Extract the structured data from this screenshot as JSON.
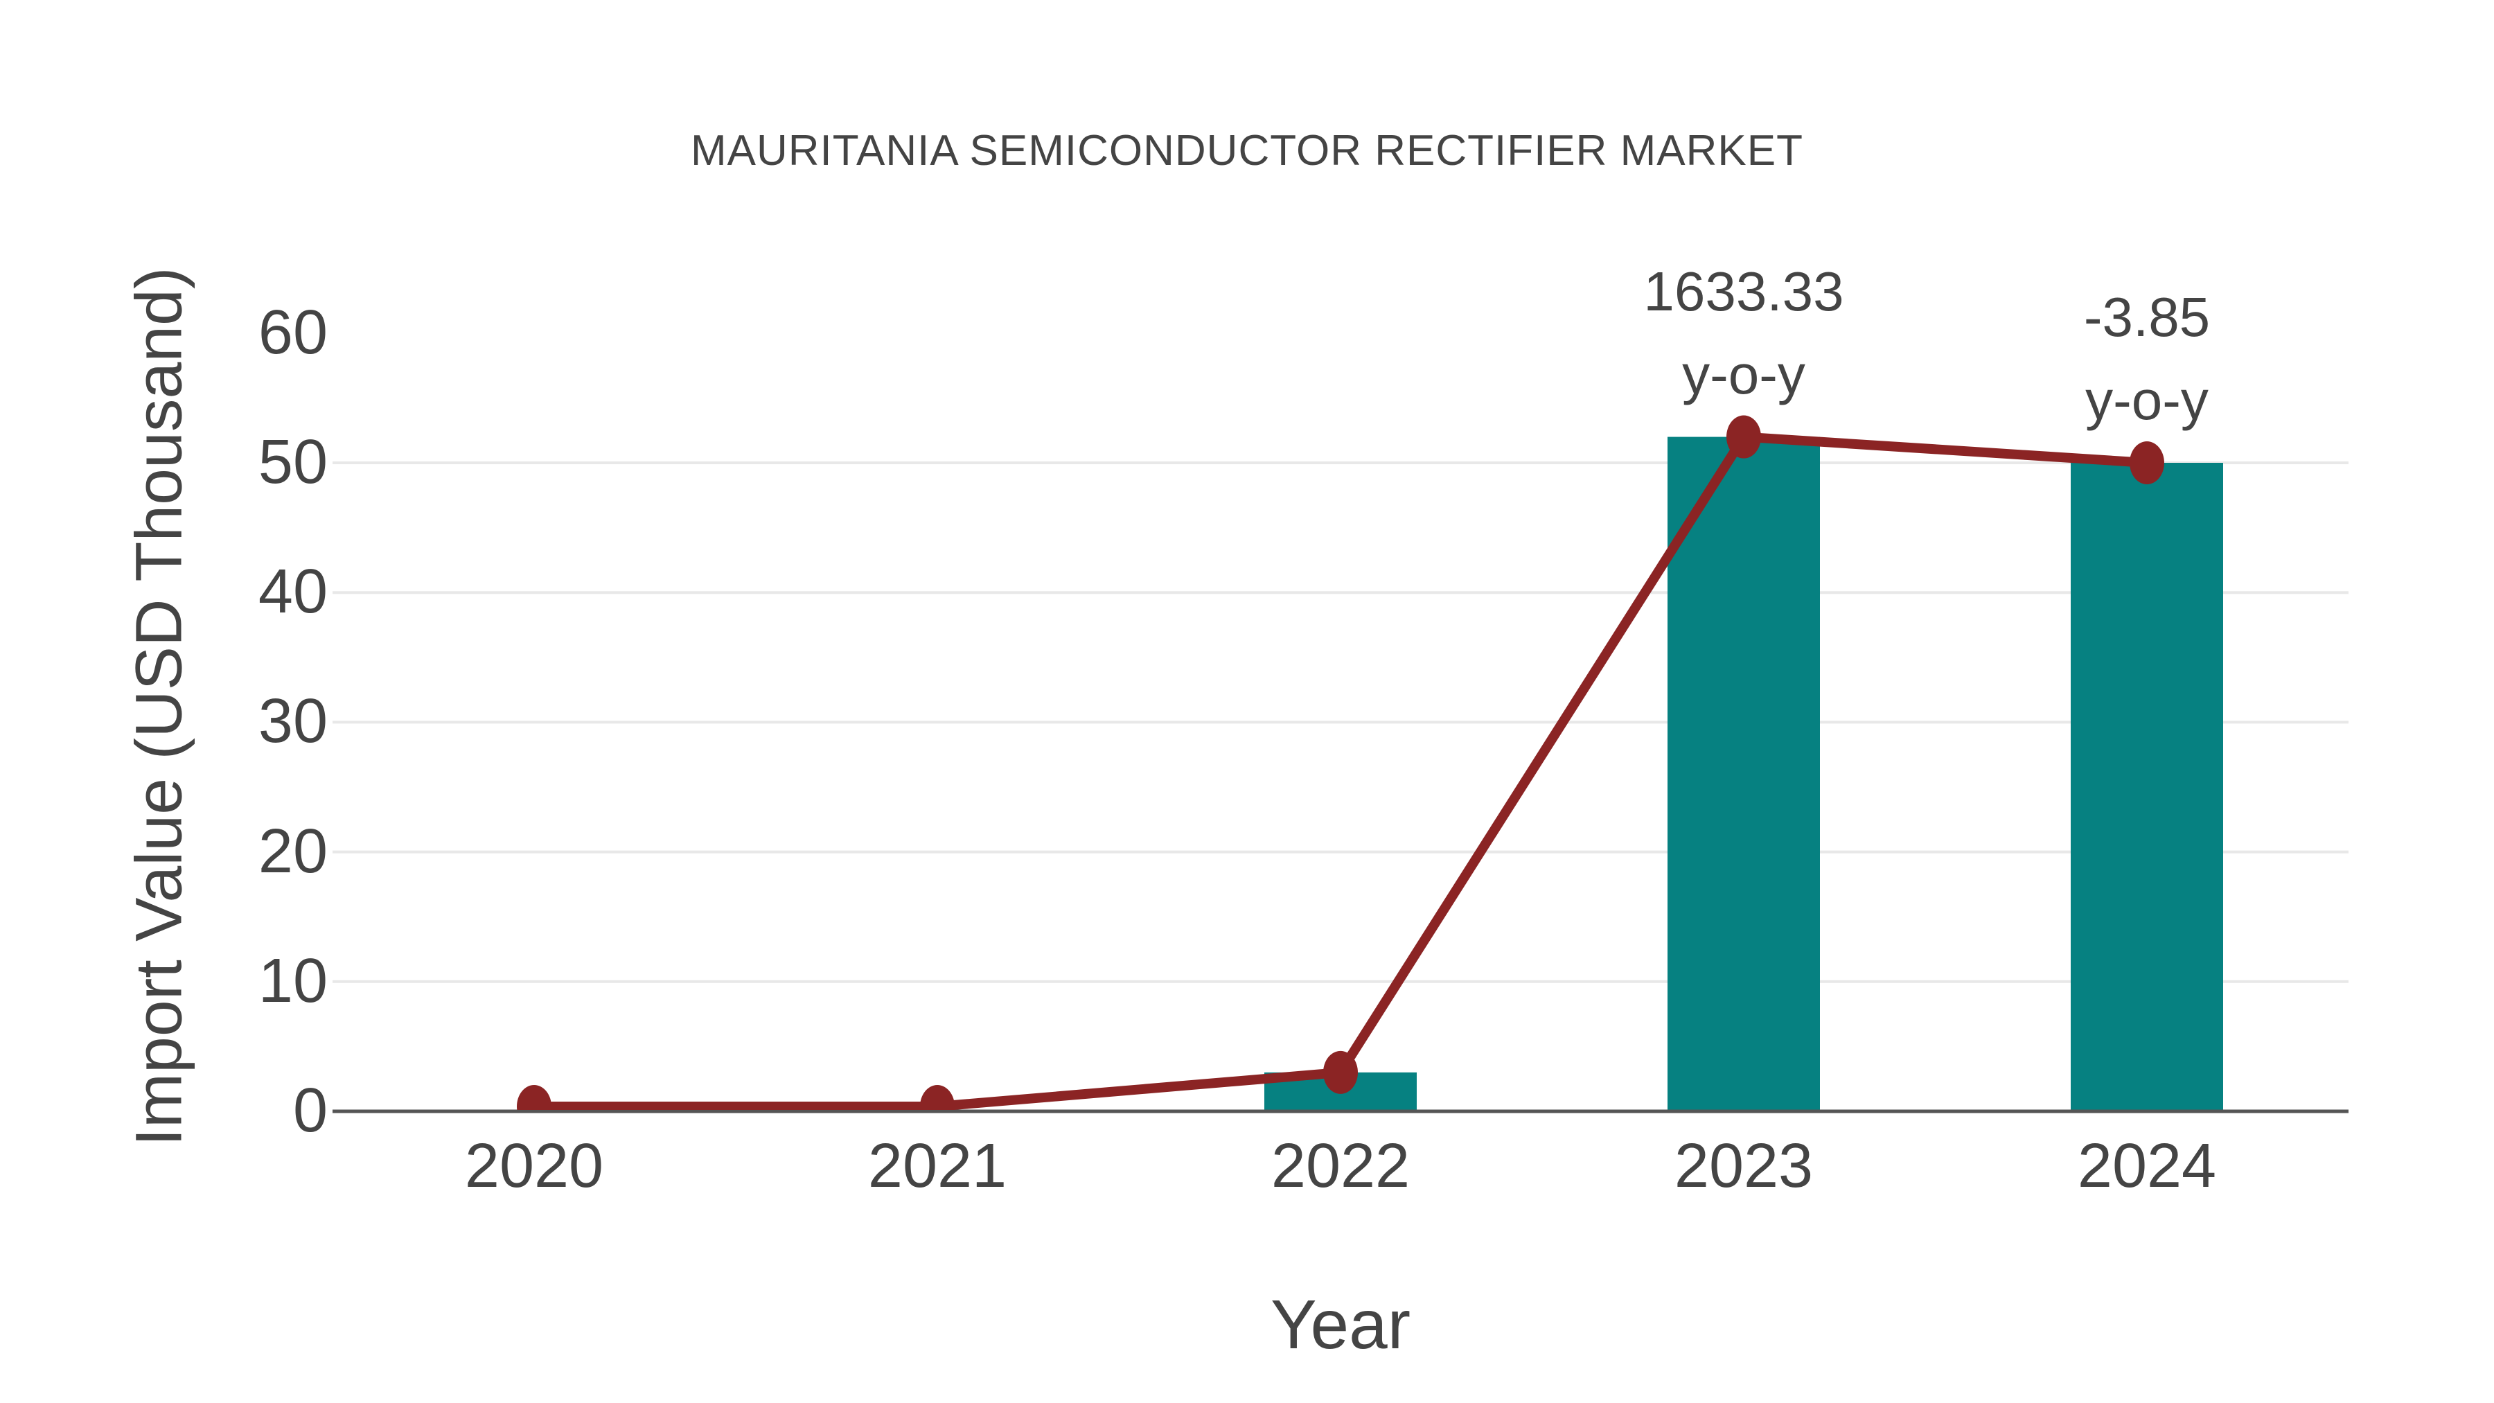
{
  "chart_data": {
    "type": "bar",
    "title": "MAURITANIA SEMICONDUCTOR RECTIFIER MARKET",
    "xlabel": "Year",
    "ylabel": "Import Value (USD Thousand)",
    "categories": [
      "2020",
      "2021",
      "2022",
      "2023",
      "2024"
    ],
    "series": [
      {
        "name": "Import Value bars",
        "type": "bar",
        "color": "#068181",
        "values": [
          0,
          0,
          3,
          52,
          50
        ]
      },
      {
        "name": "Import Value trend line",
        "type": "line",
        "color": "#8b2424",
        "values": [
          0,
          0,
          3,
          52,
          50
        ]
      }
    ],
    "ylim": [
      0,
      60
    ],
    "yticks": [
      0,
      10,
      20,
      30,
      40,
      50,
      60
    ],
    "gridline_values": [
      10,
      20,
      30,
      40,
      50
    ],
    "legend_position": "none",
    "grid": "horizontal",
    "annotations": [
      {
        "category": "2023",
        "value": 52,
        "lines": [
          "1633.33",
          "y-o-y"
        ]
      },
      {
        "category": "2024",
        "value": 50,
        "lines": [
          "-3.85",
          "y-o-y"
        ]
      }
    ],
    "colors": {
      "bar": "#068181",
      "line": "#8b2424",
      "marker": "#8b2424",
      "gridline": "#e8e8e8",
      "axis_line": "#555555",
      "text": "#444444",
      "background": "#ffffff"
    }
  }
}
